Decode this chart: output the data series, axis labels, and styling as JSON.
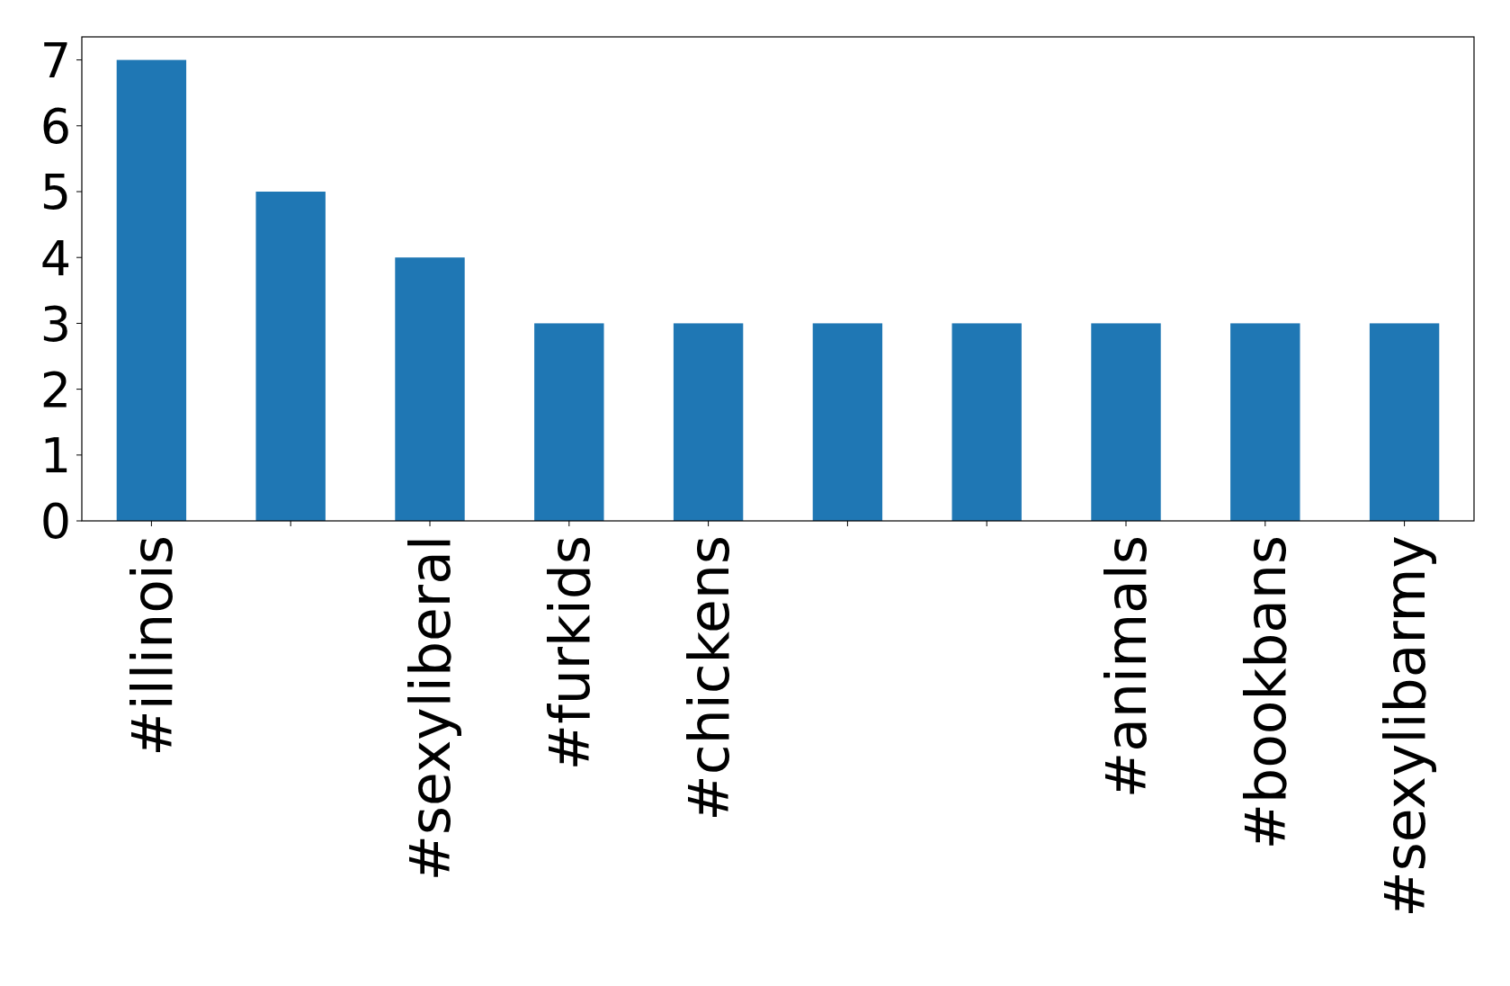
{
  "chart_data": {
    "type": "bar",
    "categories": [
      "#illinois",
      null,
      "#sexyliberal",
      "#furkids",
      "#chickens",
      null,
      null,
      "#animals",
      "#bookbans",
      "#sexylibarmy"
    ],
    "values": [
      7,
      5,
      4,
      3,
      3,
      3,
      3,
      3,
      3,
      3
    ],
    "color": "#1f77b4",
    "ylim": [
      0,
      7.35
    ],
    "yticks": [
      0,
      1,
      2,
      3,
      4,
      5,
      6,
      7
    ],
    "grid": false
  }
}
